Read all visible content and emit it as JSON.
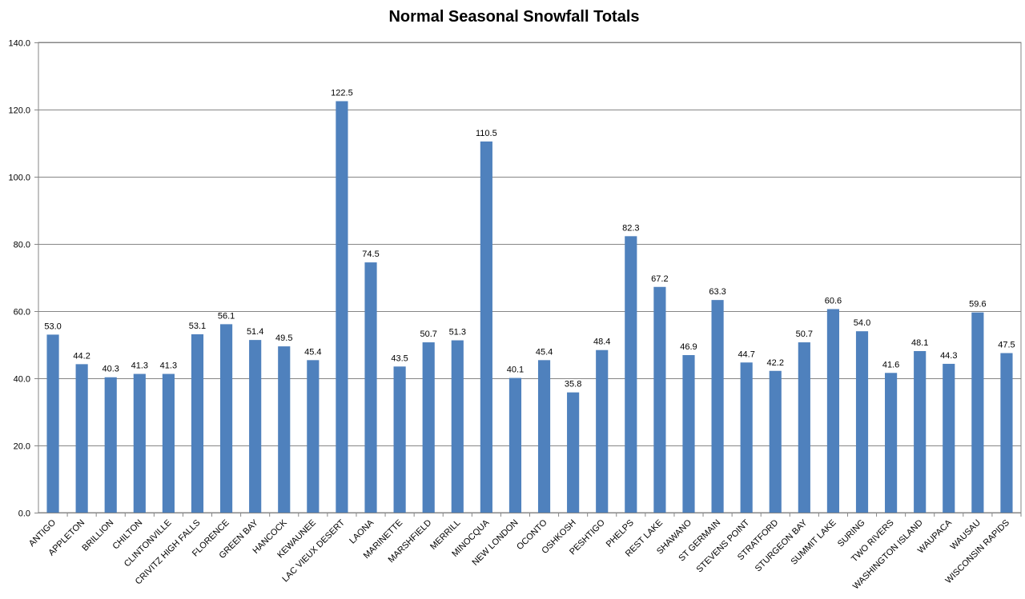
{
  "chart_data": {
    "type": "bar",
    "title": "Normal Seasonal Snowfall Totals",
    "xlabel": "",
    "ylabel": "",
    "ylim": [
      0,
      140
    ],
    "yticks": [
      "0.0",
      "20.0",
      "40.0",
      "60.0",
      "80.0",
      "100.0",
      "120.0",
      "140.0"
    ],
    "grid": true,
    "legend": "none",
    "bar_color": "#4F81BD",
    "grid_color": "#868686",
    "categories": [
      "ANTIGO",
      "APPLETON",
      "BRILLION",
      "CHILTON",
      "CLINTONVILLE",
      "CRIVITZ HIGH FALLS",
      "FLORENCE",
      "GREEN BAY",
      "HANCOCK",
      "KEWAUNEE",
      "LAC VIEUX DESERT",
      "LAONA",
      "MARINETTE",
      "MARSHFIELD",
      "MERRILL",
      "MINOCQUA",
      "NEW LONDON",
      "OCONTO",
      "OSHKOSH",
      "PESHTIGO",
      "PHELPS",
      "REST LAKE",
      "SHAWANO",
      "ST GERMAIN",
      "STEVENS POINT",
      "STRATFORD",
      "STURGEON BAY",
      "SUMMIT LAKE",
      "SURING",
      "TWO RIVERS",
      "WASHINGTON ISLAND",
      "WAUPACA",
      "WAUSAU",
      "WISCONSIN RAPIDS"
    ],
    "values": [
      53.0,
      44.2,
      40.3,
      41.3,
      41.3,
      53.1,
      56.1,
      51.4,
      49.5,
      45.4,
      122.5,
      74.5,
      43.5,
      50.7,
      51.3,
      110.5,
      40.1,
      45.4,
      35.8,
      48.4,
      82.3,
      67.2,
      46.9,
      63.3,
      44.7,
      42.2,
      50.7,
      60.6,
      54.0,
      41.6,
      48.1,
      44.3,
      59.6,
      47.5
    ],
    "data_labels": [
      "53.0",
      "44.2",
      "40.3",
      "41.3",
      "41.3",
      "53.1",
      "56.1",
      "51.4",
      "49.5",
      "45.4",
      "122.5",
      "74.5",
      "43.5",
      "50.7",
      "51.3",
      "110.5",
      "40.1",
      "45.4",
      "35.8",
      "48.4",
      "82.3",
      "67.2",
      "46.9",
      "63.3",
      "44.7",
      "42.2",
      "50.7",
      "60.6",
      "54.0",
      "41.6",
      "48.1",
      "44.3",
      "59.6",
      "47.5"
    ]
  }
}
